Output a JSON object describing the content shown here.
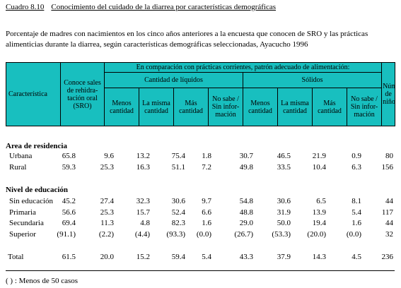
{
  "title": {
    "number": "Cuadro 8.10",
    "text": "Conocimiento del cuidado de la diarrea por características demográficas"
  },
  "subtitle": "Porcentaje de madres con nacimientos en los cinco años anteriores a la encuesta que conocen de SRO y las prácticas alimenticias durante la diarrea, según características demográficas seleccionadas, Ayacucho 1996",
  "header": {
    "characteristic": "Característica",
    "sro": "Conoce sales de rehidra-tación oral (SRO)",
    "group": "En comparación con prácticas corrientes, patrón adecuado de alimentación:",
    "liquids": "Cantidad de líquidos",
    "solids": "Sólidos",
    "sub": [
      "Menos cantidad",
      "La misma cantidad",
      "Más cantidad",
      "No sabe / Sin infor-mación"
    ],
    "children": "Número de niños"
  },
  "sections": [
    {
      "heading": "Area de residencia",
      "rows": [
        {
          "label": "Urbana",
          "values": [
            "65.8",
            "9.6",
            "13.2",
            "75.4",
            "1.8",
            "30.7",
            "46.5",
            "21.9",
            "0.9",
            "80"
          ]
        },
        {
          "label": "Rural",
          "values": [
            "59.3",
            "25.3",
            "16.3",
            "51.1",
            "7.2",
            "49.8",
            "33.5",
            "10.4",
            "6.3",
            "156"
          ]
        }
      ]
    },
    {
      "heading": "Nivel de educación",
      "rows": [
        {
          "label": "Sin educación",
          "values": [
            "45.2",
            "27.4",
            "32.3",
            "30.6",
            "9.7",
            "54.8",
            "30.6",
            "6.5",
            "8.1",
            "44"
          ]
        },
        {
          "label": "Primaria",
          "values": [
            "56.6",
            "25.3",
            "15.7",
            "52.4",
            "6.6",
            "48.8",
            "31.9",
            "13.9",
            "5.4",
            "117"
          ]
        },
        {
          "label": "Secundaria",
          "values": [
            "69.4",
            "11.3",
            "4.8",
            "82.3",
            "1.6",
            "29.0",
            "50.0",
            "19.4",
            "1.6",
            "44"
          ]
        },
        {
          "label": "Superior",
          "values": [
            "(91.1)",
            "(2.2)",
            "(4.4)",
            "(93.3)",
            "(0.0)",
            "(26.7)",
            "(53.3)",
            "(20.0)",
            "(0.0)",
            "32"
          ]
        }
      ]
    }
  ],
  "total": {
    "label": "Total",
    "values": [
      "61.5",
      "20.0",
      "15.2",
      "59.4",
      "5.4",
      "43.3",
      "37.9",
      "14.3",
      "4.5",
      "236"
    ]
  },
  "footnote": "( ) : Menos de 50 casos"
}
